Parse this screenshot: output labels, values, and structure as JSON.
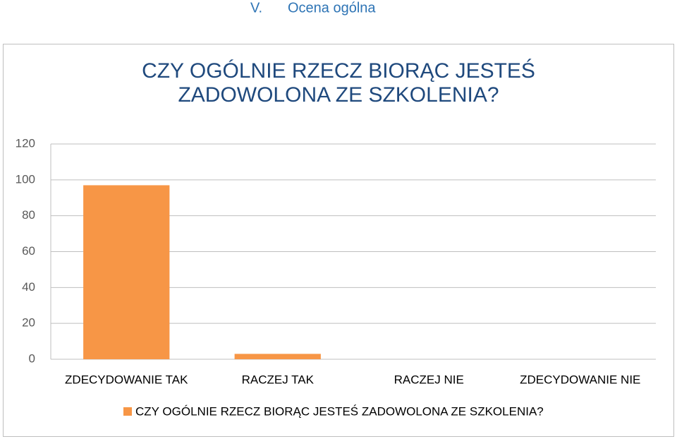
{
  "section": {
    "number": "V.",
    "title": "Ocena ogólna"
  },
  "chart_data": {
    "type": "bar",
    "title": "CZY OGÓLNIE RZECZ BIORĄC JESTEŚ ZADOWOLONA ZE SZKOLENIA?",
    "categories": [
      "ZDECYDOWANIE TAK",
      "RACZEJ TAK",
      "RACZEJ NIE",
      "ZDECYDOWANIE NIE"
    ],
    "series": [
      {
        "name": "CZY OGÓLNIE RZECZ BIORĄC JESTEŚ ZADOWOLONA ZE SZKOLENIA?",
        "color": "#f79646",
        "values": [
          97,
          3,
          0,
          0
        ]
      }
    ],
    "ylim": [
      0,
      120
    ],
    "yticks": [
      0,
      20,
      40,
      60,
      80,
      100,
      120
    ],
    "grid": true,
    "legend": "bottom"
  }
}
